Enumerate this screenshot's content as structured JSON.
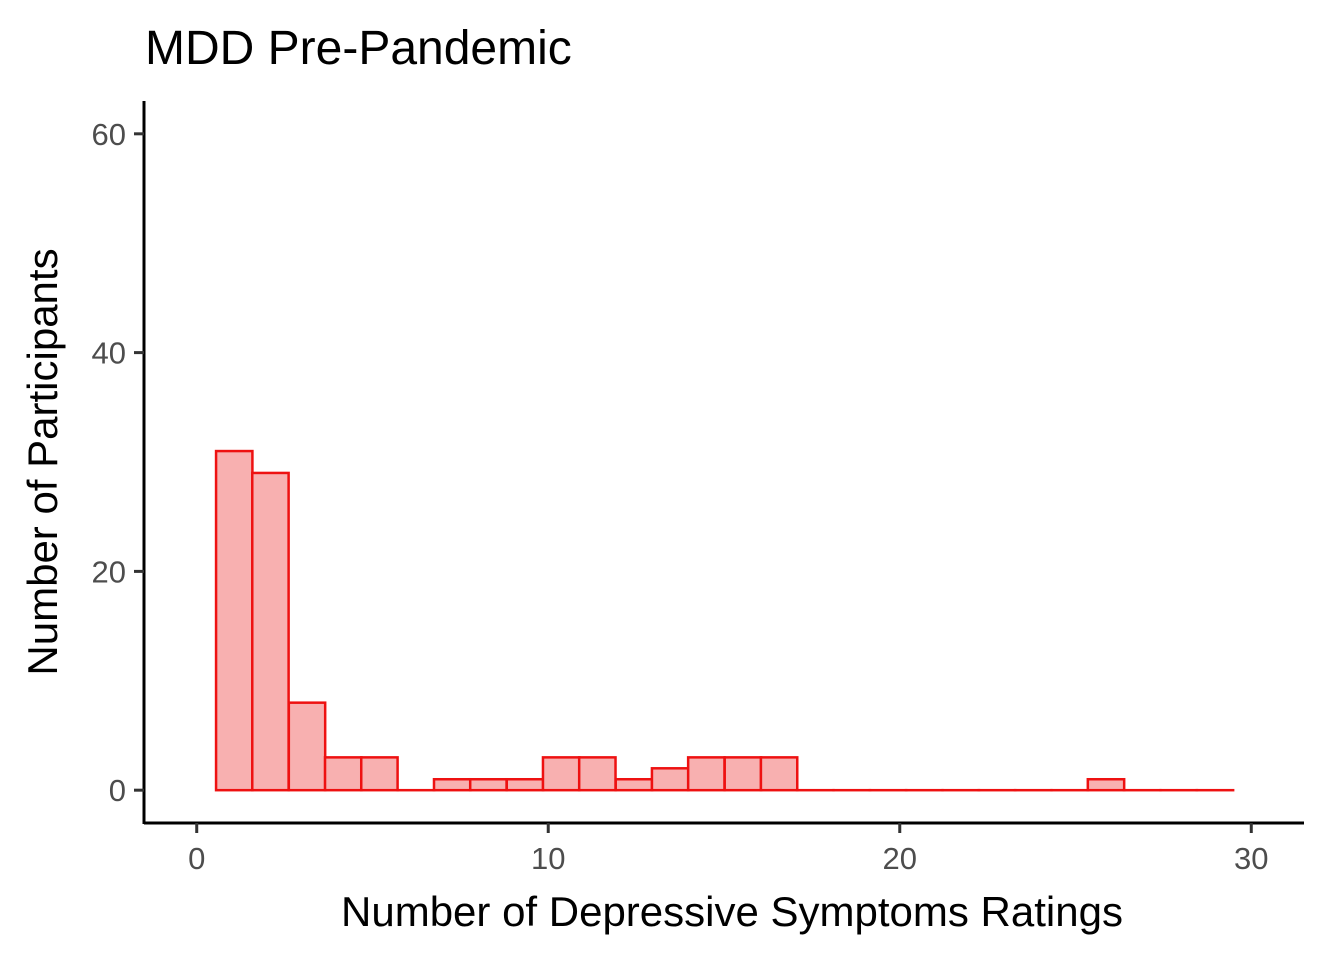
{
  "chart_data": {
    "type": "bar",
    "title": "MDD Pre-Pandemic",
    "xlabel": "Number of Depressive Symptoms Ratings",
    "ylabel": "Number of Participants",
    "xlim": [
      -1.5,
      31.5
    ],
    "ylim": [
      -3,
      63
    ],
    "x_ticks": [
      0,
      10,
      20,
      30
    ],
    "y_ticks": [
      0,
      20,
      40,
      60
    ],
    "bin_starts": [
      0.55,
      1.58,
      2.62,
      3.65,
      4.68,
      5.72,
      6.75,
      7.78,
      8.82,
      9.85,
      10.88,
      11.92,
      12.95,
      13.98,
      15.02,
      16.05,
      17.08,
      18.12,
      19.15,
      20.18,
      21.22,
      22.25,
      23.28,
      24.32,
      25.35,
      26.38,
      27.42,
      28.45
    ],
    "bin_width": 1.034,
    "values": [
      31,
      29,
      8,
      3,
      3,
      0,
      1,
      1,
      1,
      3,
      3,
      1,
      2,
      3,
      3,
      3,
      0,
      0,
      0,
      0,
      0,
      0,
      0,
      0,
      1,
      0,
      0,
      0
    ],
    "fill_color": "#f8b0b0",
    "stroke_color": "#ee1111",
    "grid": false,
    "legend": "none"
  }
}
